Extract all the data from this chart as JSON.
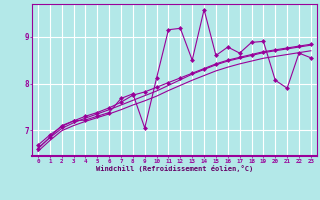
{
  "background_color": "#b3e8e8",
  "grid_color": "#ffffff",
  "line_color": "#990099",
  "xlabel": "Windchill (Refroidissement éolien,°C)",
  "xlabel_color": "#660066",
  "tick_color": "#990099",
  "xmin": -0.5,
  "xmax": 23.5,
  "ymin": 6.45,
  "ymax": 9.7,
  "yticks": [
    7,
    8,
    9
  ],
  "xticks": [
    0,
    1,
    2,
    3,
    4,
    5,
    6,
    7,
    8,
    9,
    10,
    11,
    12,
    13,
    14,
    15,
    16,
    17,
    18,
    19,
    20,
    21,
    22,
    23
  ],
  "line1_x": [
    0,
    1,
    2,
    3,
    4,
    5,
    6,
    7,
    8,
    9,
    10,
    11,
    12,
    13,
    14,
    15,
    16,
    17,
    18,
    19,
    20,
    21,
    22,
    23
  ],
  "line1_y": [
    6.6,
    6.85,
    7.1,
    7.2,
    7.22,
    7.3,
    7.38,
    7.68,
    7.78,
    7.05,
    8.12,
    9.15,
    9.18,
    8.5,
    9.58,
    8.6,
    8.78,
    8.65,
    8.88,
    8.9,
    8.07,
    7.9,
    8.65,
    8.55
  ],
  "line2_x": [
    0,
    1,
    2,
    3,
    4,
    5,
    6,
    7,
    8,
    9,
    10,
    11,
    12,
    13,
    14,
    15,
    16,
    17,
    18,
    19,
    20,
    21,
    22,
    23
  ],
  "line2_y": [
    6.68,
    6.9,
    7.08,
    7.2,
    7.3,
    7.38,
    7.48,
    7.6,
    7.75,
    7.82,
    7.92,
    8.02,
    8.12,
    8.22,
    8.32,
    8.42,
    8.5,
    8.56,
    8.62,
    8.68,
    8.72,
    8.76,
    8.8,
    8.84
  ],
  "line3_x": [
    0,
    1,
    2,
    3,
    4,
    5,
    6,
    7,
    8,
    9,
    10,
    11,
    12,
    13,
    14,
    15,
    16,
    17,
    18,
    19,
    20,
    21,
    22,
    23
  ],
  "line3_y": [
    6.62,
    6.84,
    7.04,
    7.16,
    7.26,
    7.35,
    7.44,
    7.54,
    7.64,
    7.74,
    7.84,
    7.96,
    8.08,
    8.2,
    8.3,
    8.4,
    8.48,
    8.54,
    8.6,
    8.66,
    8.7,
    8.74,
    8.78,
    8.82
  ],
  "line4_x": [
    0,
    1,
    2,
    3,
    4,
    5,
    6,
    7,
    8,
    9,
    10,
    11,
    12,
    13,
    14,
    15,
    16,
    17,
    18,
    19,
    20,
    21,
    22,
    23
  ],
  "line4_y": [
    6.55,
    6.78,
    6.99,
    7.1,
    7.19,
    7.27,
    7.35,
    7.44,
    7.54,
    7.63,
    7.73,
    7.85,
    7.96,
    8.07,
    8.17,
    8.27,
    8.35,
    8.42,
    8.48,
    8.54,
    8.58,
    8.62,
    8.66,
    8.7
  ]
}
